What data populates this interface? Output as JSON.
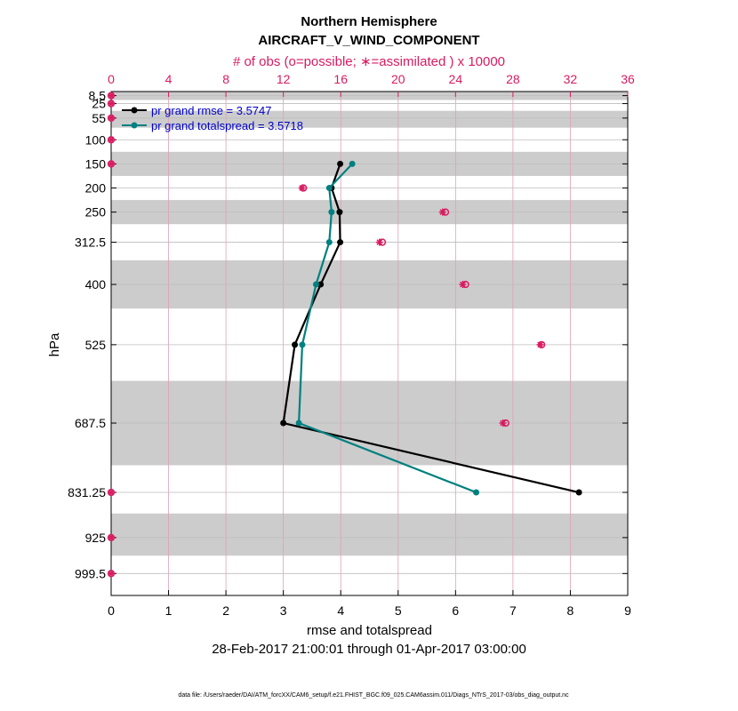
{
  "chart_data": {
    "type": "line",
    "title": "Northern Hemisphere",
    "subtitle": "AIRCRAFT_V_WIND_COMPONENT",
    "top_axis_label": "# of obs (o=possible; ∗=assimilated ) x 10000",
    "xlabel": "rmse and totalspread",
    "ylabel": "hPa",
    "date_range": "28-Feb-2017 21:00:01 through 01-Apr-2017 03:00:00",
    "footnote": "data file: /Users/raeder/DAI/ATM_forcXX/CAM6_setup/f.e21.FHIST_BGC.f09_025.CAM6assim.011/Diags_NTrS_2017-03/obs_diag_output.nc",
    "xlim": [
      0,
      9
    ],
    "top_xlim": [
      0,
      36
    ],
    "ylim": [
      1045,
      0
    ],
    "x_ticks": [
      0,
      1,
      2,
      3,
      4,
      5,
      6,
      7,
      8,
      9
    ],
    "top_ticks": [
      0,
      4,
      8,
      12,
      16,
      20,
      24,
      28,
      32,
      36
    ],
    "levels": [
      8.5,
      25,
      55,
      100,
      150,
      200,
      250,
      312.5,
      400,
      525,
      687.5,
      831.25,
      925,
      999.5
    ],
    "level_labels": [
      "8.5",
      "25",
      "55",
      "100",
      "150",
      "200",
      "250",
      "312.5",
      "400",
      "525",
      "687.5",
      "831.25",
      "925",
      "999.5"
    ],
    "shaded_bands": [
      [
        0,
        17.5
      ],
      [
        40,
        75
      ],
      [
        125,
        175
      ],
      [
        225,
        275
      ],
      [
        350,
        450
      ],
      [
        600,
        775
      ],
      [
        875,
        962.5
      ]
    ],
    "series": [
      {
        "name": "pr grand rmse = 3.5747",
        "color": "#000000",
        "levels": [
          150,
          200,
          250,
          312.5,
          400,
          525,
          687.5,
          831.25
        ],
        "values": [
          3.99,
          3.84,
          3.98,
          3.99,
          3.65,
          3.2,
          3.0,
          8.15
        ]
      },
      {
        "name": "pr grand totalspread = 3.5718",
        "color": "#008080",
        "levels": [
          150,
          200,
          250,
          312.5,
          400,
          525,
          687.5,
          831.25
        ],
        "values": [
          4.2,
          3.8,
          3.84,
          3.8,
          3.57,
          3.33,
          3.27,
          6.36
        ]
      }
    ],
    "obs_count": {
      "units": "x 10000",
      "levels": [
        8.5,
        25,
        55,
        100,
        150,
        200,
        250,
        312.5,
        400,
        525,
        687.5,
        831.25,
        925,
        999.5
      ],
      "possible": [
        0,
        0,
        0,
        0,
        0,
        13.4,
        23.3,
        18.9,
        24.7,
        30.0,
        27.5,
        0,
        0,
        0
      ],
      "assimilated": [
        0,
        0,
        0,
        0,
        0,
        13.3,
        23.1,
        18.7,
        24.5,
        29.9,
        27.3,
        0,
        0,
        0
      ]
    }
  }
}
